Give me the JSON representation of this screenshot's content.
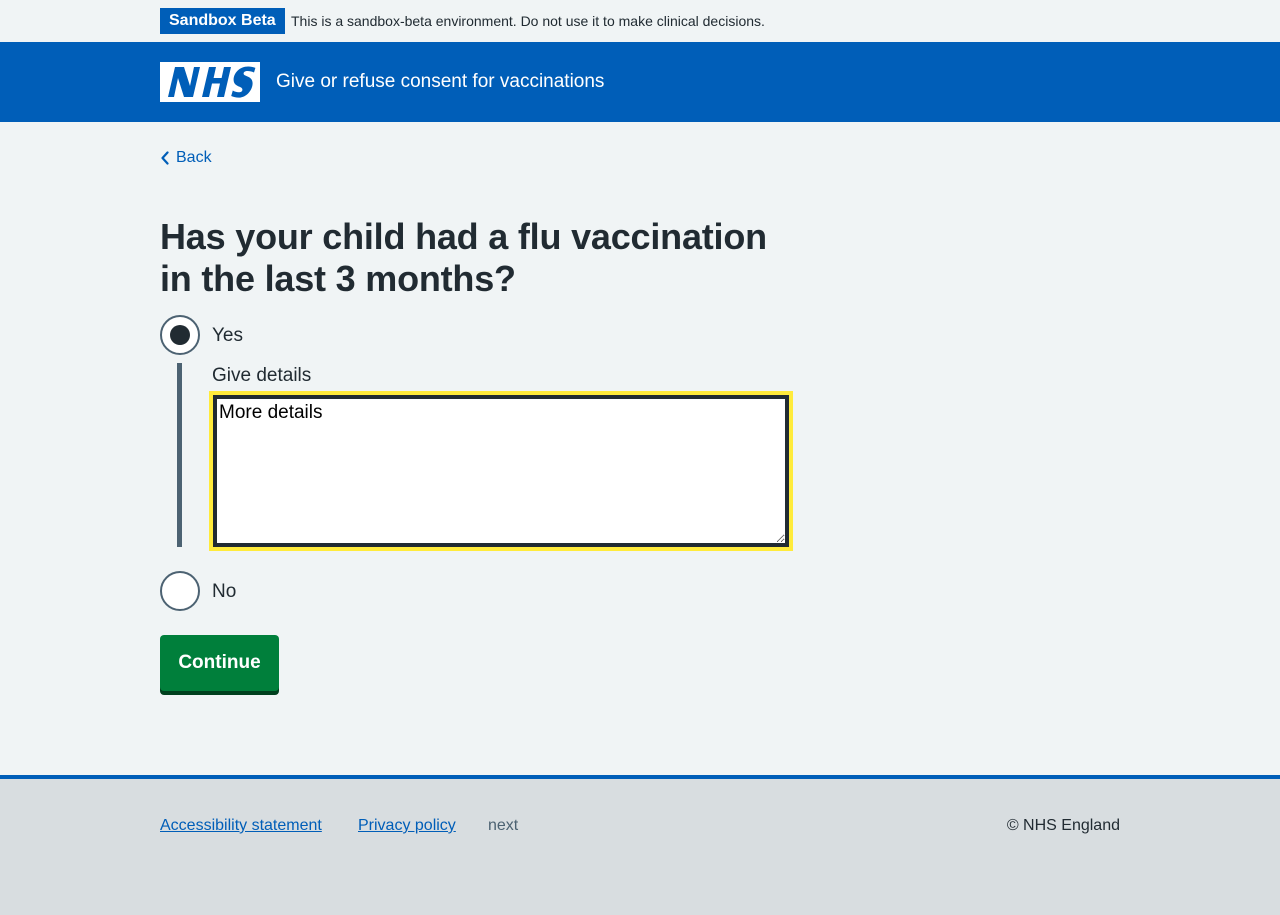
{
  "phase_banner": {
    "tag": "Sandbox Beta",
    "text": "This is a sandbox-beta environment. Do not use it to make clinical decisions."
  },
  "header": {
    "logo_alt": "NHS",
    "service_name": "Give or refuse consent for vaccinations"
  },
  "back_link": {
    "label": "Back"
  },
  "question": {
    "heading": "Has your child had a flu vaccination in the last 3 months?",
    "options": [
      {
        "label": "Yes",
        "selected": true
      },
      {
        "label": "No",
        "selected": false
      }
    ],
    "conditional": {
      "label": "Give details",
      "value": "More details"
    }
  },
  "button": {
    "continue_label": "Continue"
  },
  "footer": {
    "links": [
      "Accessibility statement",
      "Privacy policy"
    ],
    "version_text": "next",
    "copyright": "© NHS England"
  },
  "colors": {
    "brand_blue": "#005eb8",
    "button_green": "#007f3b",
    "focus_yellow": "#ffeb3b",
    "page_bg": "#f0f4f5",
    "footer_bg": "#d8dde0"
  }
}
